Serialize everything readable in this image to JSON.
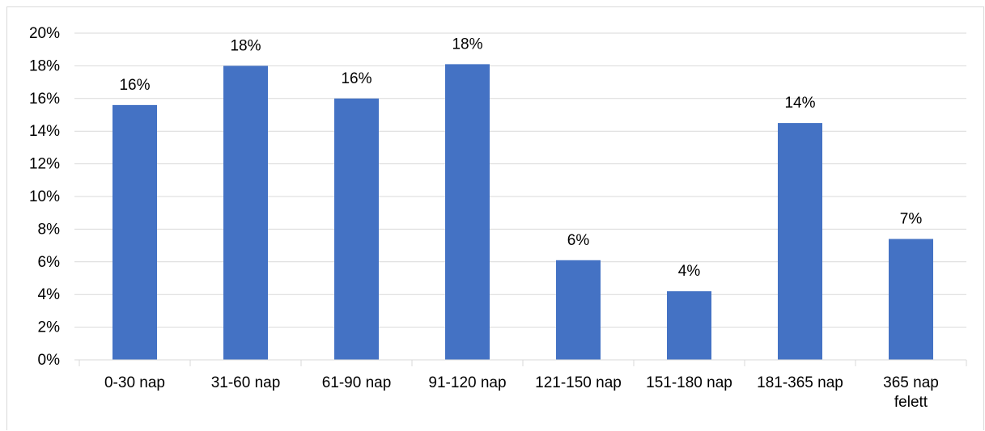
{
  "chart_data": {
    "type": "bar",
    "title": "",
    "xlabel": "",
    "ylabel": "",
    "categories": [
      "0-30 nap",
      "31-60 nap",
      "61-90 nap",
      "91-120 nap",
      "121-150 nap",
      "151-180 nap",
      "181-365 nap",
      "365 nap felett"
    ],
    "values": [
      15.6,
      18.0,
      16.0,
      18.1,
      6.1,
      4.2,
      14.5,
      7.4
    ],
    "data_labels": [
      "16%",
      "18%",
      "16%",
      "18%",
      "6%",
      "4%",
      "14%",
      "7%"
    ],
    "y_ticks": [
      "0%",
      "2%",
      "4%",
      "6%",
      "8%",
      "10%",
      "12%",
      "14%",
      "16%",
      "18%",
      "20%"
    ],
    "ylim": [
      0,
      20
    ],
    "y_unit": "%",
    "grid": true,
    "legend": "none",
    "bar_color": "#4472c4",
    "grid_color": "#d9d9d9"
  }
}
